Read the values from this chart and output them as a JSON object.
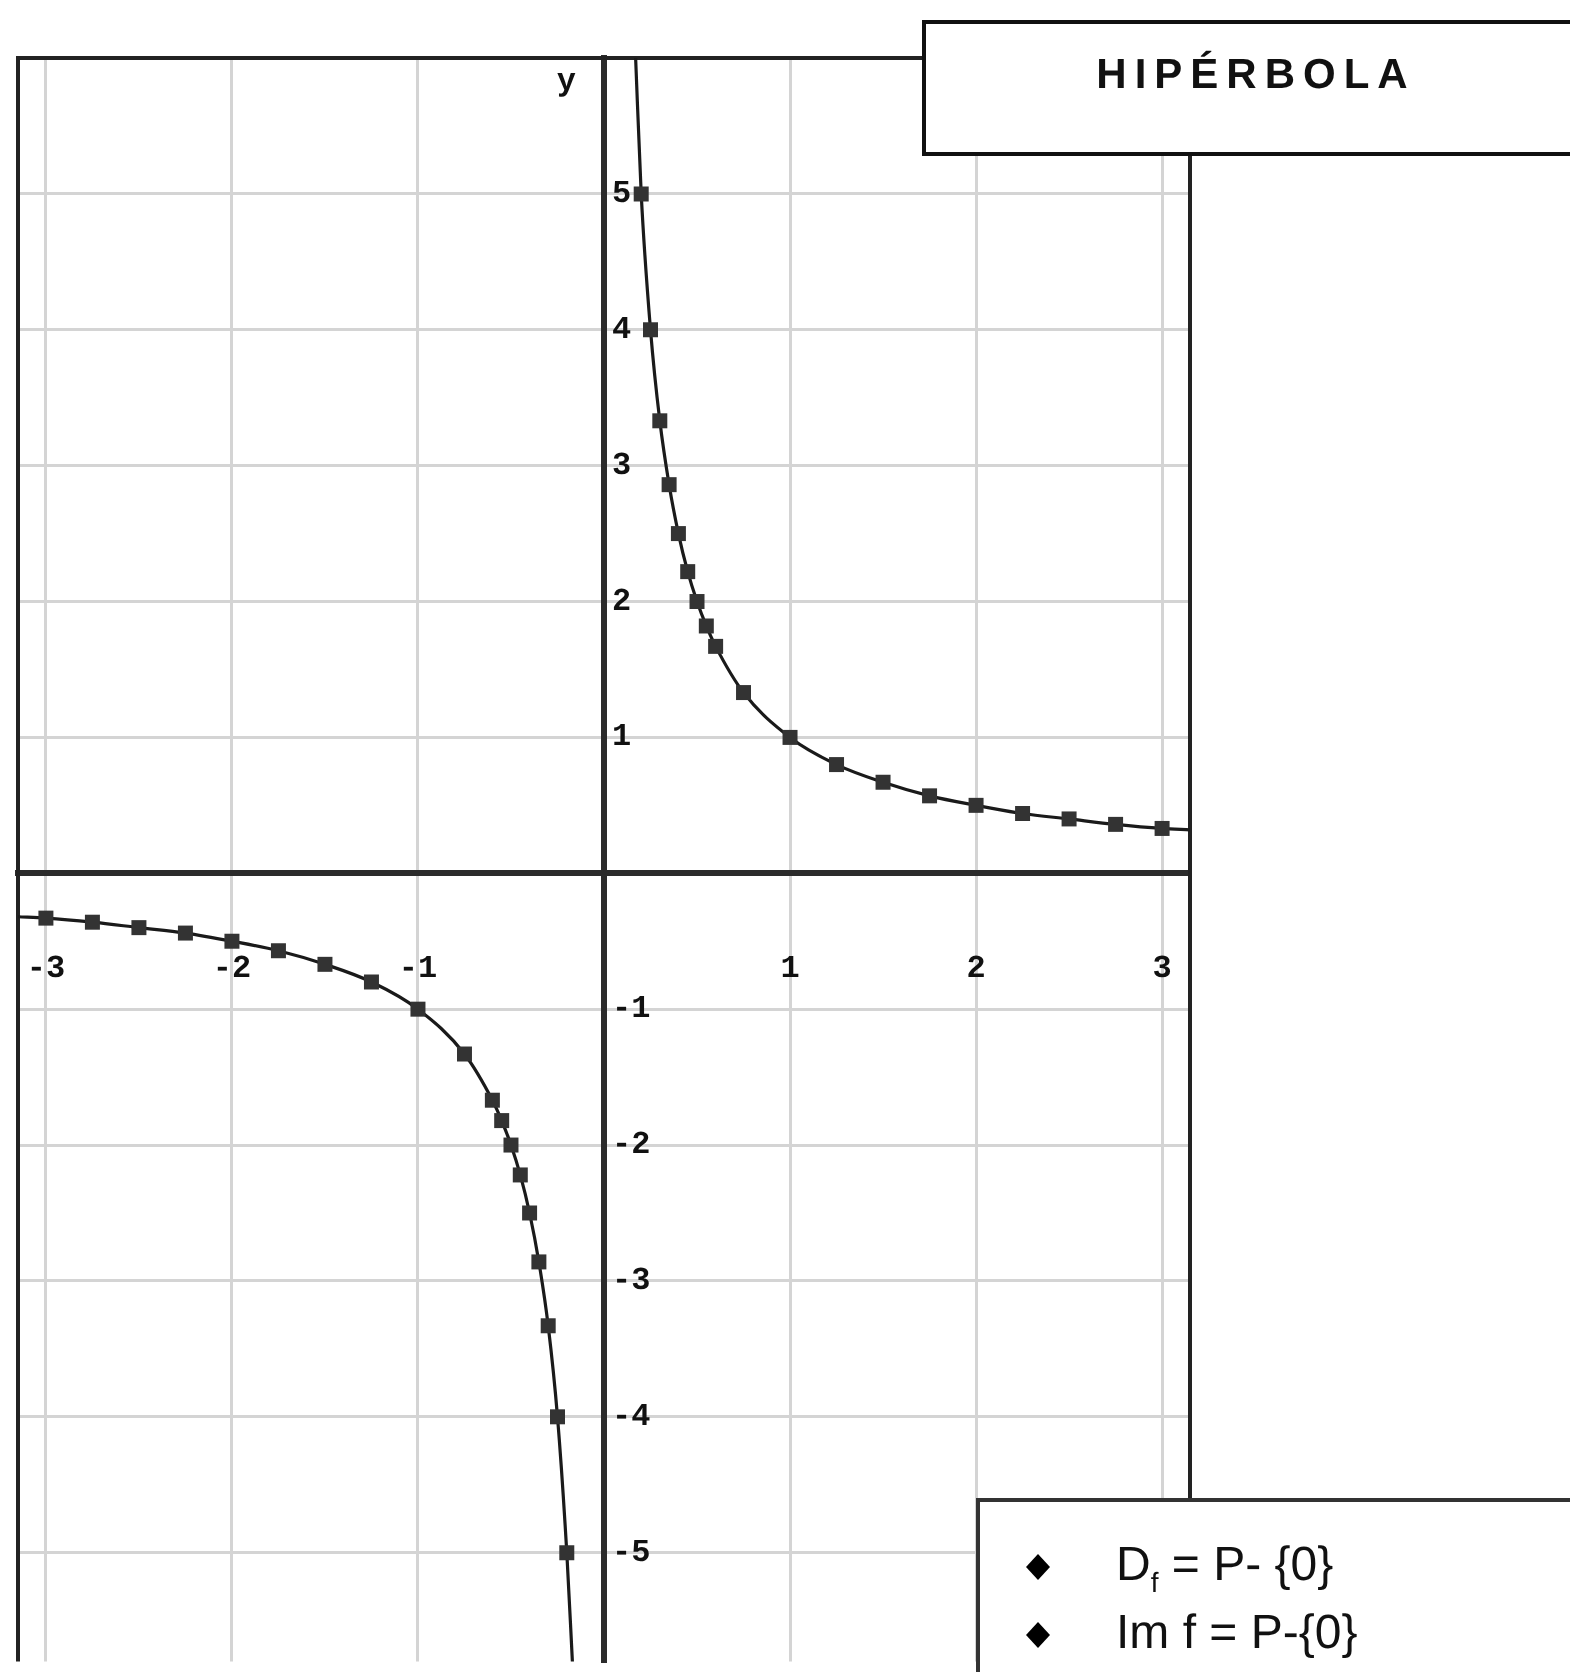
{
  "chart_data": {
    "type": "line",
    "title": "HIPÉRBOLA",
    "ylabel": "y",
    "annotations": [
      "D$_{f}$ = P- {0}",
      "Im f = P-{0}"
    ],
    "series": [
      {
        "color": "#1a1a1a",
        "marker": "none",
        "line_style": "solid",
        "x": [
          -3.15,
          -3,
          -2.75,
          -2.5,
          -2.25,
          -2,
          -1.75,
          -1.5,
          -1.25,
          -1,
          -0.75,
          -0.6,
          -0.55,
          -0.5,
          -0.45,
          -0.4,
          -0.35,
          -0.3,
          -0.25,
          -0.2,
          -0.17
        ],
        "values": [
          -0.32,
          -0.33,
          -0.36,
          -0.4,
          -0.44,
          -0.5,
          -0.57,
          -0.67,
          -0.8,
          -1,
          -1.33,
          -1.67,
          -1.82,
          -2,
          -2.22,
          -2.5,
          -2.86,
          -3.33,
          -4,
          -5,
          -5.8
        ]
      },
      {
        "color": "#1a1a1a",
        "marker": "none",
        "line_style": "solid",
        "x": [
          0.17,
          0.2,
          0.25,
          0.3,
          0.35,
          0.4,
          0.45,
          0.5,
          0.55,
          0.6,
          0.75,
          1,
          1.25,
          1.5,
          1.75,
          2,
          2.25,
          2.5,
          2.75,
          3,
          3.15
        ],
        "values": [
          6,
          5,
          4,
          3.33,
          2.86,
          2.5,
          2.22,
          2,
          1.82,
          1.67,
          1.33,
          1,
          0.8,
          0.67,
          0.57,
          0.5,
          0.44,
          0.4,
          0.36,
          0.33,
          0.32
        ]
      },
      {
        "type": "scatter",
        "color": "#333333",
        "marker": "square",
        "x": [
          -3,
          -2.75,
          -2.5,
          -2.25,
          -2,
          -1.75,
          -1.5,
          -1.25,
          -1,
          -0.75,
          -0.6,
          -0.55,
          -0.5,
          -0.45,
          -0.4,
          -0.35,
          -0.3,
          -0.25,
          -0.2,
          0.2,
          0.25,
          0.3,
          0.35,
          0.4,
          0.45,
          0.5,
          0.55,
          0.6,
          0.75,
          1,
          1.25,
          1.5,
          1.75,
          2,
          2.25,
          2.5,
          2.75,
          3
        ],
        "values": [
          -0.33,
          -0.36,
          -0.4,
          -0.44,
          -0.5,
          -0.57,
          -0.67,
          -0.8,
          -1,
          -1.33,
          -1.67,
          -1.82,
          -2,
          -2.22,
          -2.5,
          -2.86,
          -3.33,
          -4,
          -5,
          5,
          4,
          3.33,
          2.86,
          2.5,
          2.22,
          2,
          1.82,
          1.67,
          1.33,
          1,
          0.8,
          0.67,
          0.57,
          0.5,
          0.44,
          0.4,
          0.36,
          0.33
        ]
      }
    ],
    "xlim": [
      -3.15,
      3.15
    ],
    "ylim": [
      -5.8,
      6
    ],
    "xticks": [
      -3,
      -2,
      -1,
      {
        "value": 0,
        "label": null
      },
      1,
      2,
      3
    ],
    "yticks": [
      -5,
      -4,
      -3,
      -2,
      -1,
      {
        "value": 0,
        "label": null
      },
      1,
      2,
      3,
      4,
      5
    ],
    "grid": true,
    "legend": false
  }
}
